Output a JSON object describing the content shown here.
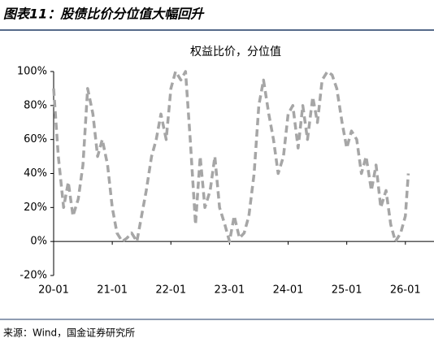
{
  "chart_data": {
    "type": "line",
    "title": "图表11：股债比价分位值大幅回升",
    "source": "来源：Wind，国金证券研究所",
    "x": [
      2020.0,
      2020.08,
      2020.17,
      2020.25,
      2020.33,
      2020.42,
      2020.5,
      2020.58,
      2020.67,
      2020.75,
      2020.83,
      2020.92,
      2021.0,
      2021.08,
      2021.17,
      2021.25,
      2021.33,
      2021.42,
      2021.5,
      2021.58,
      2021.67,
      2021.75,
      2021.83,
      2021.92,
      2022.0,
      2022.08,
      2022.17,
      2022.25,
      2022.33,
      2022.42,
      2022.5,
      2022.58,
      2022.67,
      2022.75,
      2022.83,
      2022.92,
      2023.0,
      2023.08,
      2023.17,
      2023.25,
      2023.33,
      2023.42,
      2023.5,
      2023.58,
      2023.67,
      2023.75,
      2023.83,
      2023.92,
      2024.0,
      2024.08,
      2024.17,
      2024.25,
      2024.33,
      2024.42,
      2024.5,
      2024.58,
      2024.67,
      2024.75,
      2024.83,
      2024.92,
      2025.0,
      2025.08,
      2025.17,
      2025.25,
      2025.33,
      2025.42,
      2025.5,
      2025.58,
      2025.67,
      2025.75,
      2025.83,
      2025.92,
      2026.0,
      2026.05
    ],
    "series": [
      {
        "name": "权益比价，分位值",
        "color": "#a6a6a6",
        "values": [
          90,
          50,
          20,
          35,
          15,
          25,
          45,
          90,
          75,
          50,
          60,
          45,
          20,
          5,
          0,
          2,
          5,
          0,
          15,
          30,
          50,
          60,
          75,
          60,
          90,
          100,
          95,
          100,
          60,
          10,
          50,
          20,
          30,
          50,
          20,
          10,
          0,
          15,
          2,
          5,
          15,
          40,
          80,
          95,
          75,
          60,
          40,
          50,
          75,
          80,
          55,
          80,
          60,
          85,
          70,
          95,
          100,
          98,
          90,
          70,
          55,
          65,
          60,
          40,
          50,
          30,
          45,
          20,
          30,
          10,
          0,
          5,
          15,
          40
        ]
      }
    ],
    "xlim": [
      2020,
      2026.1
    ],
    "xticks": [
      {
        "value": 2020,
        "label": "20-01"
      },
      {
        "value": 2021,
        "label": "21-01"
      },
      {
        "value": 2022,
        "label": "22-01"
      },
      {
        "value": 2023,
        "label": "23-01"
      },
      {
        "value": 2024,
        "label": "24-01"
      },
      {
        "value": 2025,
        "label": "25-01"
      },
      {
        "value": 2026,
        "label": "26-01"
      }
    ],
    "ylim": [
      -20,
      100
    ],
    "yticks": [
      {
        "value": -20,
        "label": "-20%"
      },
      {
        "value": 0,
        "label": "0%"
      },
      {
        "value": 20,
        "label": "20%"
      },
      {
        "value": 40,
        "label": "40%"
      },
      {
        "value": 60,
        "label": "60%"
      },
      {
        "value": 80,
        "label": "80%"
      },
      {
        "value": 100,
        "label": "100%"
      }
    ]
  }
}
